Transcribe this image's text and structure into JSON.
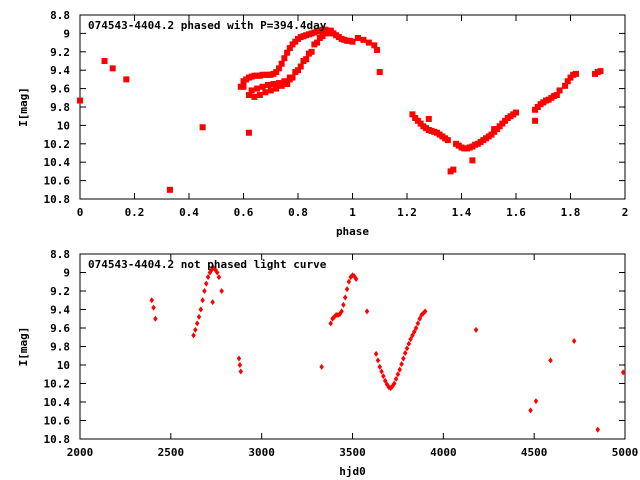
{
  "chart_data": [
    {
      "type": "scatter",
      "title": "074543-4404.2 phased with P=394.4day",
      "xlabel": "phase",
      "ylabel": "I[mag]",
      "xlim": [
        0,
        2
      ],
      "ylim": [
        10.8,
        8.8
      ],
      "y_inverted": true,
      "xticks": [
        "0",
        "0.2",
        "0.4",
        "0.6",
        "0.8",
        "1",
        "1.2",
        "1.4",
        "1.6",
        "1.8",
        "2"
      ],
      "yticks": [
        "8.8",
        "9",
        "9.2",
        "9.4",
        "9.6",
        "9.8",
        "10",
        "10.2",
        "10.4",
        "10.6",
        "10.8"
      ],
      "marker_color": "#ff0000",
      "x": [
        0.0,
        0.09,
        0.12,
        0.17,
        0.33,
        0.45,
        0.59,
        0.6,
        0.61,
        0.62,
        0.63,
        0.64,
        0.65,
        0.66,
        0.67,
        0.68,
        0.69,
        0.7,
        0.71,
        0.72,
        0.73,
        0.74,
        0.75,
        0.76,
        0.77,
        0.78,
        0.79,
        0.8,
        0.81,
        0.82,
        0.83,
        0.84,
        0.85,
        0.86,
        0.87,
        0.88,
        0.89,
        0.9,
        0.91,
        0.92,
        0.93,
        0.94,
        0.95,
        0.96,
        0.97,
        0.98,
        0.99,
        1.0,
        0.63,
        0.65,
        0.67,
        0.69,
        0.71,
        0.73,
        0.75,
        0.77,
        0.79,
        0.81,
        0.83,
        0.85,
        0.87,
        0.89,
        0.91,
        0.62,
        0.64,
        0.66,
        0.68,
        0.7,
        0.72,
        0.74,
        0.76,
        0.78,
        0.8,
        0.82,
        0.84,
        0.86,
        0.88,
        0.9,
        0.92,
        0.6,
        0.62,
        0.76,
        0.77,
        1.02,
        1.04,
        1.06,
        1.08,
        1.09,
        1.1,
        1.22,
        1.23,
        1.24,
        1.25,
        1.26,
        1.27,
        1.28,
        1.29,
        1.3,
        1.31,
        1.32,
        1.33,
        1.34,
        1.35,
        1.36,
        1.38,
        1.39,
        1.4,
        1.41,
        1.42,
        1.43,
        1.44,
        1.45,
        1.46,
        1.47,
        1.48,
        1.49,
        1.5,
        1.51,
        1.52,
        1.53,
        1.54,
        1.55,
        1.56,
        1.57,
        1.58,
        1.59,
        1.6,
        1.67,
        1.68,
        1.69,
        1.7,
        1.71,
        1.72,
        1.73,
        1.74,
        1.75,
        1.76,
        1.78,
        1.79,
        1.8,
        1.81,
        1.82,
        1.89,
        1.9,
        1.91,
        1.37,
        1.44,
        1.52,
        1.67,
        1.28
      ],
      "y": [
        9.73,
        9.3,
        9.38,
        9.5,
        10.7,
        10.02,
        9.58,
        9.52,
        9.5,
        9.48,
        9.47,
        9.46,
        9.46,
        9.46,
        9.45,
        9.45,
        9.45,
        9.45,
        9.44,
        9.42,
        9.38,
        9.33,
        9.27,
        9.21,
        9.16,
        9.12,
        9.09,
        9.06,
        9.04,
        9.03,
        9.02,
        9.01,
        9.0,
        8.99,
        8.98,
        8.97,
        8.96,
        8.96,
        8.97,
        8.98,
        9.0,
        9.02,
        9.04,
        9.06,
        9.07,
        9.08,
        9.08,
        9.09,
        9.62,
        9.6,
        9.58,
        9.56,
        9.55,
        9.54,
        9.52,
        9.48,
        9.42,
        9.36,
        9.28,
        9.2,
        9.1,
        9.03,
        9.0,
        9.67,
        9.69,
        9.67,
        9.64,
        9.62,
        9.6,
        9.57,
        9.53,
        9.48,
        9.4,
        9.3,
        9.22,
        9.12,
        9.05,
        9.0,
        8.97,
        9.58,
        10.08,
        9.55,
        9.5,
        9.05,
        9.07,
        9.1,
        9.13,
        9.18,
        9.42,
        9.88,
        9.92,
        9.95,
        9.98,
        10.01,
        10.03,
        10.05,
        10.06,
        10.07,
        10.08,
        10.1,
        10.12,
        10.14,
        10.16,
        10.5,
        10.2,
        10.22,
        10.24,
        10.25,
        10.25,
        10.24,
        10.23,
        10.21,
        10.2,
        10.18,
        10.16,
        10.14,
        10.12,
        10.1,
        10.07,
        10.04,
        10.01,
        9.98,
        9.95,
        9.92,
        9.9,
        9.88,
        9.86,
        9.83,
        9.8,
        9.77,
        9.75,
        9.73,
        9.72,
        9.7,
        9.68,
        9.67,
        9.62,
        9.57,
        9.52,
        9.48,
        9.45,
        9.44,
        9.44,
        9.42,
        9.41,
        10.48,
        10.38,
        10.04,
        9.95,
        9.93
      ]
    },
    {
      "type": "scatter",
      "title": "074543-4404.2 not phased light curve",
      "xlabel": "hjd0",
      "ylabel": "I[mag]",
      "xlim": [
        2000,
        5000
      ],
      "ylim": [
        10.8,
        8.8
      ],
      "y_inverted": true,
      "xticks": [
        "2000",
        "2500",
        "3000",
        "3500",
        "4000",
        "4500",
        "5000"
      ],
      "yticks": [
        "8.8",
        "9",
        "9.2",
        "9.4",
        "9.6",
        "9.8",
        "10",
        "10.2",
        "10.4",
        "10.6",
        "10.8"
      ],
      "marker_color": "#ff0000",
      "x": [
        2395,
        2405,
        2415,
        2625,
        2635,
        2645,
        2655,
        2665,
        2675,
        2685,
        2695,
        2705,
        2715,
        2725,
        2735,
        2745,
        2755,
        2765,
        2780,
        2730,
        2875,
        2880,
        2885,
        3330,
        3380,
        3390,
        3400,
        3410,
        3420,
        3430,
        3440,
        3450,
        3460,
        3470,
        3480,
        3490,
        3500,
        3510,
        3520,
        3580,
        3630,
        3640,
        3650,
        3660,
        3670,
        3680,
        3690,
        3700,
        3710,
        3720,
        3730,
        3740,
        3750,
        3760,
        3770,
        3780,
        3790,
        3800,
        3810,
        3820,
        3830,
        3840,
        3850,
        3860,
        3870,
        3880,
        3890,
        3900,
        4180,
        4480,
        4510,
        4590,
        4720,
        4850,
        4990
      ],
      "y": [
        9.3,
        9.38,
        9.5,
        9.68,
        9.62,
        9.55,
        9.48,
        9.4,
        9.3,
        9.2,
        9.12,
        9.05,
        9.0,
        8.97,
        8.95,
        8.97,
        9.0,
        9.05,
        9.2,
        9.32,
        9.93,
        10.0,
        10.07,
        10.02,
        9.55,
        9.5,
        9.48,
        9.46,
        9.46,
        9.45,
        9.42,
        9.35,
        9.27,
        9.18,
        9.1,
        9.05,
        9.03,
        9.04,
        9.07,
        9.42,
        9.88,
        9.95,
        10.02,
        10.07,
        10.12,
        10.17,
        10.21,
        10.24,
        10.25,
        10.23,
        10.2,
        10.15,
        10.1,
        10.05,
        9.99,
        9.93,
        9.87,
        9.82,
        9.77,
        9.72,
        9.68,
        9.64,
        9.6,
        9.55,
        9.5,
        9.46,
        9.44,
        9.42,
        9.62,
        10.49,
        10.39,
        9.95,
        9.74,
        10.7,
        10.08
      ]
    }
  ]
}
